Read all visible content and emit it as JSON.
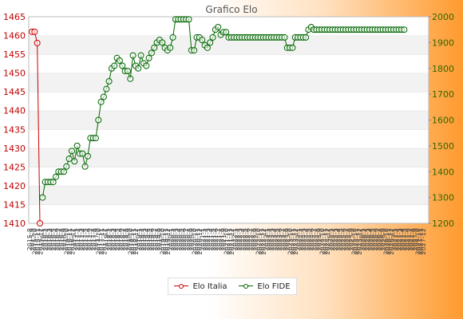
{
  "chart_data": {
    "type": "line",
    "title": "Grafico Elo",
    "legend": {
      "placement": "bottom-center"
    },
    "grid": true,
    "left_axis": {
      "ylim": [
        1410,
        1465
      ],
      "ticks": [
        1410,
        1415,
        1420,
        1425,
        1430,
        1435,
        1440,
        1445,
        1450,
        1455,
        1460,
        1465
      ],
      "color": "#cc0000"
    },
    "right_axis": {
      "ylim": [
        1200,
        2000
      ],
      "ticks": [
        1200,
        1300,
        1400,
        1500,
        1600,
        1700,
        1800,
        1900,
        2000
      ],
      "color": "#006600"
    },
    "x_tick_labels": [
      "2015-8",
      "2015-9",
      "2015-10",
      "2015-11",
      "2015-12",
      "2016-1",
      "2016-2",
      "2016-3",
      "2016-4",
      "2016-5",
      "2016-6",
      "2016-7",
      "2016-8",
      "2016-9",
      "2016-10",
      "2016-11",
      "2016-12",
      "2017-1",
      "2017-2",
      "2017-3",
      "2017-4",
      "2017-5",
      "2017-6",
      "2017-7",
      "2017-8",
      "2017-9",
      "2017-10",
      "2017-11",
      "2017-12",
      "2018-1",
      "2018-2",
      "2018-3",
      "2018-4",
      "2018-5",
      "2018-6",
      "2018-7",
      "2018-8",
      "2018-9",
      "2018-10",
      "2018-11",
      "2018-12",
      "2019-1",
      "2019-2",
      "2019-3",
      "2019-4",
      "2019-5",
      "2019-6",
      "2019-7",
      "2019-8",
      "2019-9",
      "2019-10",
      "2019-11",
      "2019-12",
      "2020-1",
      "2020-2",
      "2020-3",
      "2020-4",
      "2020-5",
      "2020-6",
      "2020-7",
      "2020-8",
      "2020-9",
      "2020-10",
      "2020-11",
      "2020-12",
      "2021-1",
      "2021-2",
      "2021-3",
      "2021-4",
      "2021-5",
      "2021-6",
      "2021-7",
      "2021-8",
      "2021-9",
      "2021-10",
      "2021-11",
      "2021-12",
      "2022-1",
      "2022-2",
      "2022-3",
      "2022-4",
      "2022-5",
      "2022-6",
      "2022-7",
      "2022-8",
      "2022-9",
      "2022-10",
      "2022-11",
      "2022-12",
      "2023-1",
      "2023-2",
      "2023-3",
      "2023-4",
      "2023-5",
      "2023-6",
      "2023-7",
      "2023-8",
      "2023-9",
      "2023-10",
      "2023-11",
      "2023-12",
      "2024-1",
      "2024-2",
      "2024-3",
      "2024-4",
      "2024-5",
      "2024-6",
      "2024-7",
      "2024-8",
      "2024-9",
      "2024-10",
      "2024-11",
      "2024-12",
      "2025-1",
      "2025-2",
      "2025-3",
      "2025-4",
      "2025-5",
      "2025-6",
      "2025-7",
      "2025-8",
      "2025-9",
      "2025-10",
      "2025-11",
      "2025-12",
      "2026-1",
      "2026-2",
      "2026-3",
      "2026-4",
      "2026-5",
      "2026-6",
      "2026-7",
      "2026-8",
      "2026-9",
      "2026-10",
      "2026-11",
      "2026-12",
      "2027-1",
      "2027-2",
      "2027-3",
      "2027-4",
      "2027-5",
      "2027-6",
      "2027-7",
      "2027-8",
      "2027-9",
      "2027-10",
      "2027-11",
      "2027-12"
    ],
    "series": [
      {
        "name": "Elo Italia",
        "axis": "left",
        "color": "#cc0000",
        "values": [
          1461,
          1461,
          1458,
          1410
        ]
      },
      {
        "name": "Elo FIDE",
        "axis": "right",
        "color": "#006600",
        "values": [
          null,
          null,
          null,
          null,
          1300,
          1360,
          1360,
          1360,
          1360,
          1380,
          1400,
          1400,
          1400,
          1420,
          1450,
          1480,
          1440,
          1500,
          1470,
          1470,
          1420,
          1460,
          1530,
          1530,
          1530,
          1600,
          1670,
          1690,
          1720,
          1750,
          1800,
          1810,
          1840,
          1830,
          1810,
          1790,
          1790,
          1760,
          1850,
          1810,
          1800,
          1850,
          1820,
          1810,
          1840,
          1860,
          1880,
          1900,
          1910,
          1900,
          1880,
          1870,
          1880,
          1920,
          1990,
          1990,
          1990,
          1990,
          1990,
          1990,
          1870,
          1870,
          1920,
          1920,
          1910,
          1890,
          1880,
          1900,
          1920,
          1950,
          1960,
          1930,
          1940,
          1940,
          1920,
          1920,
          1920,
          1920,
          1920,
          1920,
          1920,
          1920,
          1920,
          1920,
          1920,
          1920,
          1920,
          1920,
          1920,
          1920,
          1920,
          1920,
          1920,
          1920,
          1920,
          1920,
          1880,
          1880,
          1880,
          1920,
          1920,
          1920,
          1920,
          1920,
          1950,
          1960,
          1950,
          1950,
          1950,
          1950,
          1950,
          1950,
          1950,
          1950,
          1950,
          1950,
          1950,
          1950,
          1950,
          1950,
          1950,
          1950,
          1950,
          1950,
          1950,
          1950,
          1950,
          1950,
          1950,
          1950,
          1950,
          1950,
          1950,
          1950,
          1950,
          1950,
          1950,
          1950,
          1950,
          1950,
          1950
        ]
      }
    ]
  }
}
